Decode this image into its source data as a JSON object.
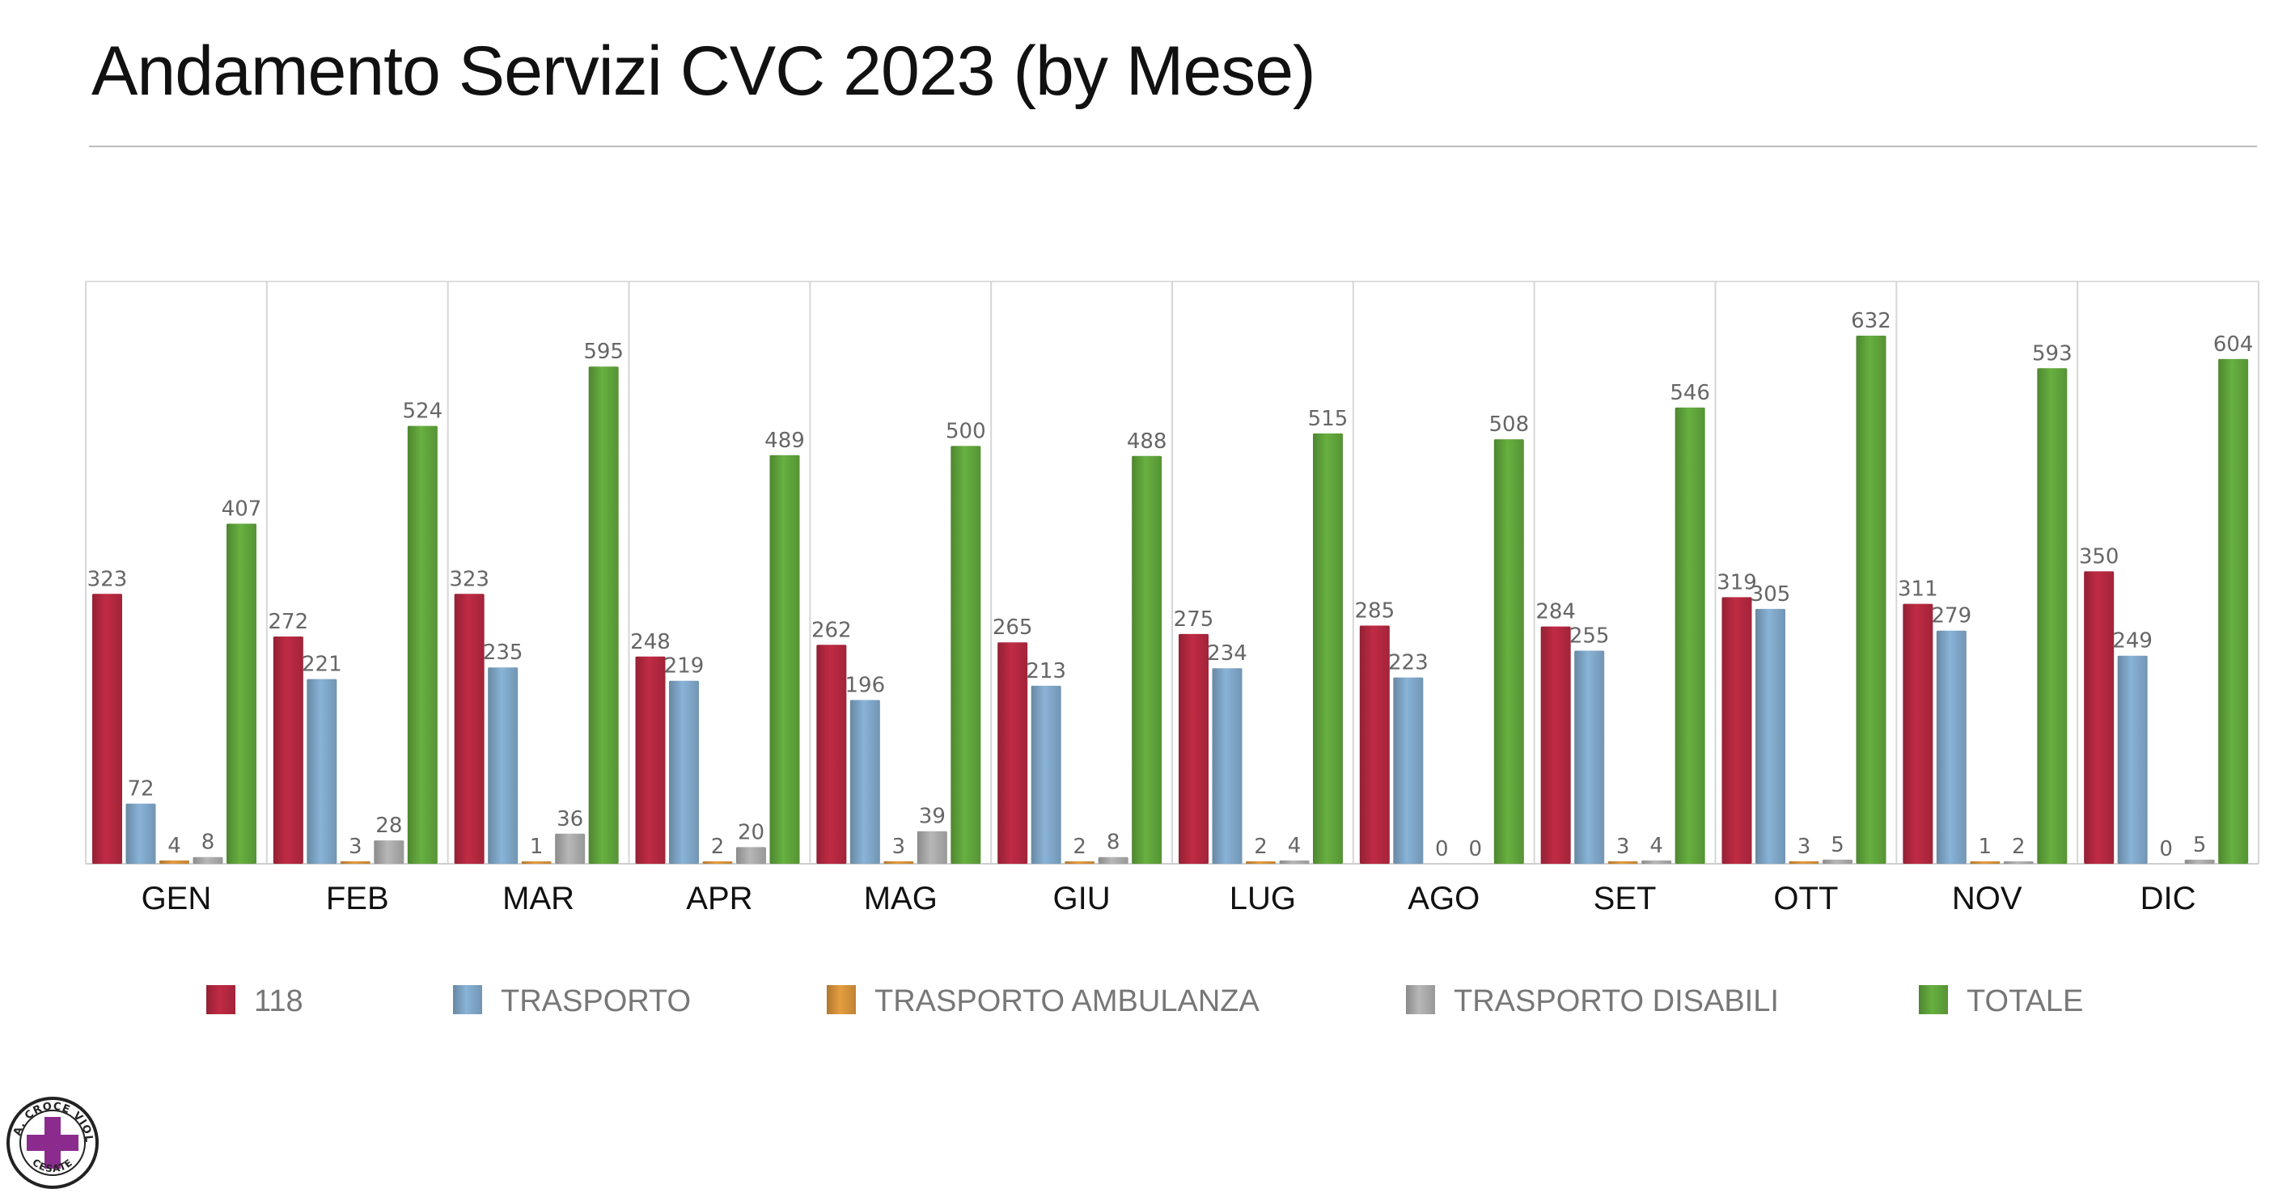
{
  "slide": {
    "title": "Andamento Servizi CVC 2023 (by Mese)"
  },
  "logo": {
    "name": "croce-viola-logo",
    "text_top": "P. A. CROCE VIOLA",
    "text_bottom": "CESATE",
    "color": "#8c2b8e"
  },
  "chart_data": {
    "type": "bar",
    "title": "",
    "xlabel": "",
    "ylabel": "",
    "ylim": [
      0,
      632
    ],
    "grid": "vertical separators between categories",
    "legend": "bottom",
    "categories": [
      "GEN",
      "FEB",
      "MAR",
      "APR",
      "MAG",
      "GIU",
      "LUG",
      "AGO",
      "SET",
      "OTT",
      "NOV",
      "DIC"
    ],
    "series": [
      {
        "name": "118",
        "color": "#b3283f",
        "values": [
          323,
          272,
          323,
          248,
          262,
          265,
          275,
          285,
          284,
          319,
          311,
          350
        ]
      },
      {
        "name": "TRASPORTO",
        "color": "#7fa6c7",
        "values": [
          72,
          221,
          235,
          219,
          196,
          213,
          234,
          223,
          255,
          305,
          279,
          249
        ]
      },
      {
        "name": "TRASPORTO AMBULANZA",
        "color": "#d4913a",
        "values": [
          4,
          3,
          1,
          2,
          3,
          2,
          2,
          0,
          3,
          3,
          1,
          0
        ]
      },
      {
        "name": "TRASPORTO DISABILI",
        "color": "#a9a9a9",
        "values": [
          8,
          28,
          36,
          20,
          39,
          8,
          4,
          0,
          4,
          5,
          2,
          5
        ]
      },
      {
        "name": "TOTALE",
        "color": "#5fa33b",
        "values": [
          407,
          524,
          595,
          489,
          500,
          488,
          515,
          508,
          546,
          632,
          593,
          604
        ]
      }
    ]
  }
}
